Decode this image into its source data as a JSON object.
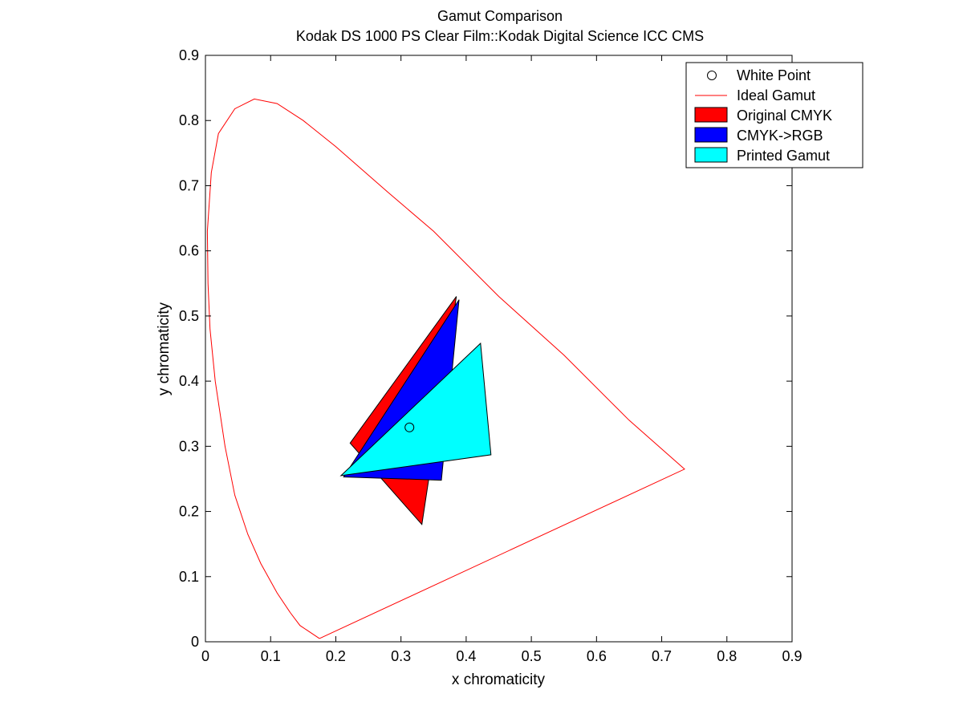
{
  "chart_data": {
    "type": "scatter",
    "title": "Gamut Comparison",
    "subtitle": "Kodak DS 1000 PS Clear Film::Kodak Digital Science ICC CMS",
    "xlabel": "x chromaticity",
    "ylabel": "y chromaticity",
    "xlim": [
      0,
      0.9
    ],
    "ylim": [
      0,
      0.9
    ],
    "xticks": [
      "0",
      "0.1",
      "0.2",
      "0.3",
      "0.4",
      "0.5",
      "0.6",
      "0.7",
      "0.8",
      "0.9"
    ],
    "yticks": [
      "0",
      "0.1",
      "0.2",
      "0.3",
      "0.4",
      "0.5",
      "0.6",
      "0.7",
      "0.8",
      "0.9"
    ],
    "grid": false,
    "legend_position": "top-right",
    "series": [
      {
        "name": "White Point",
        "kind": "marker",
        "marker": "circle",
        "color": "#000000",
        "points": [
          [
            0.313,
            0.329
          ]
        ]
      },
      {
        "name": "Ideal Gamut",
        "kind": "line",
        "color": "#ff0000",
        "points": [
          [
            0.175,
            0.005
          ],
          [
            0.145,
            0.025
          ],
          [
            0.13,
            0.045
          ],
          [
            0.11,
            0.075
          ],
          [
            0.085,
            0.12
          ],
          [
            0.065,
            0.165
          ],
          [
            0.045,
            0.225
          ],
          [
            0.03,
            0.3
          ],
          [
            0.015,
            0.4
          ],
          [
            0.007,
            0.48
          ],
          [
            0.004,
            0.55
          ],
          [
            0.003,
            0.63
          ],
          [
            0.009,
            0.72
          ],
          [
            0.02,
            0.78
          ],
          [
            0.045,
            0.818
          ],
          [
            0.075,
            0.833
          ],
          [
            0.11,
            0.826
          ],
          [
            0.15,
            0.8
          ],
          [
            0.2,
            0.76
          ],
          [
            0.28,
            0.69
          ],
          [
            0.35,
            0.63
          ],
          [
            0.45,
            0.53
          ],
          [
            0.55,
            0.44
          ],
          [
            0.65,
            0.34
          ],
          [
            0.735,
            0.265
          ],
          [
            0.175,
            0.005
          ]
        ]
      },
      {
        "name": "Original CMYK",
        "kind": "polygon",
        "color": "#ff0000",
        "points": [
          [
            0.222,
            0.305
          ],
          [
            0.385,
            0.53
          ],
          [
            0.332,
            0.18
          ]
        ]
      },
      {
        "name": "CMYK->RGB",
        "kind": "polygon",
        "color": "#0000ff",
        "points": [
          [
            0.212,
            0.253
          ],
          [
            0.389,
            0.525
          ],
          [
            0.362,
            0.248
          ]
        ]
      },
      {
        "name": "Printed Gamut",
        "kind": "polygon",
        "color": "#00ffff",
        "points": [
          [
            0.208,
            0.255
          ],
          [
            0.422,
            0.458
          ],
          [
            0.438,
            0.287
          ]
        ]
      }
    ]
  },
  "legend": {
    "items": [
      {
        "label": "White Point"
      },
      {
        "label": "Ideal Gamut"
      },
      {
        "label": "Original CMYK"
      },
      {
        "label": "CMYK->RGB"
      },
      {
        "label": "Printed Gamut"
      }
    ]
  }
}
